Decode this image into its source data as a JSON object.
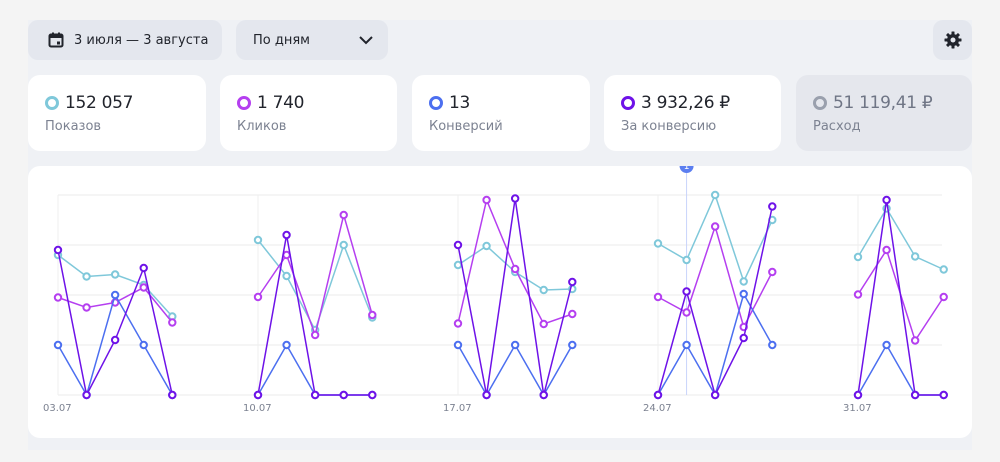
{
  "toolbar": {
    "date_range": "3 июля — 3 августа",
    "period": "По дням",
    "icons": {
      "calendar": "calendar-icon",
      "chevron": "chevron-down-icon",
      "settings": "gear-icon"
    }
  },
  "metrics": [
    {
      "value": "152 057",
      "label": "Показов",
      "color": "#7fc8da",
      "active": true
    },
    {
      "value": "1 740",
      "label": "Кликов",
      "color": "#b53ff0",
      "active": true
    },
    {
      "value": "13",
      "label": "Конверсий",
      "color": "#4c6ff0",
      "active": true
    },
    {
      "value": "3 932,26 ₽",
      "label": "За конверсию",
      "color": "#6e12e8",
      "active": true
    },
    {
      "value": "51 119,41 ₽",
      "label": "Расход",
      "color": "#9aa0ad",
      "active": false
    }
  ],
  "chart_data": {
    "type": "line",
    "x_ticks": [
      "03.07",
      "10.07",
      "17.07",
      "24.07",
      "31.07"
    ],
    "ylim": [
      0,
      4
    ],
    "grid": true,
    "marker": {
      "day_index": 22,
      "label": "1"
    },
    "weeks": [
      {
        "start_day": 0,
        "days": 5
      },
      {
        "start_day": 7,
        "days": 5
      },
      {
        "start_day": 14,
        "days": 5
      },
      {
        "start_day": 21,
        "days": 5
      },
      {
        "start_day": 28,
        "days": 4
      }
    ],
    "series": [
      {
        "name": "Показов",
        "color": "#7fc8da",
        "values": [
          [
            2.8,
            2.37,
            2.41,
            2.2,
            1.57
          ],
          [
            3.1,
            2.38,
            1.3,
            3.0,
            1.55
          ],
          [
            2.6,
            2.98,
            2.46,
            2.1,
            2.12
          ],
          [
            3.03,
            2.7,
            4.0,
            2.27,
            3.5
          ],
          [
            2.76,
            3.73,
            2.77,
            2.51
          ]
        ]
      },
      {
        "name": "Кликов",
        "color": "#b53ff0",
        "values": [
          [
            1.95,
            1.75,
            1.85,
            2.15,
            1.45
          ],
          [
            1.96,
            2.8,
            1.2,
            3.6,
            1.6
          ],
          [
            1.43,
            3.9,
            2.52,
            1.42,
            1.62
          ],
          [
            1.96,
            1.65,
            3.37,
            1.36,
            2.46
          ],
          [
            2.01,
            2.9,
            1.09,
            1.96
          ]
        ]
      },
      {
        "name": "Конверсий",
        "color": "#4c6ff0",
        "values": [
          [
            1.0,
            0,
            2.0,
            1.0,
            0
          ],
          [
            0,
            1.0,
            0,
            0,
            0
          ],
          [
            1.0,
            0,
            1.0,
            0,
            1.0
          ],
          [
            0,
            1.0,
            0,
            2.02,
            1.0
          ],
          [
            0,
            1.0,
            0,
            0
          ]
        ]
      },
      {
        "name": "За конверсию",
        "color": "#6e12e8",
        "values": [
          [
            2.9,
            0,
            1.1,
            2.54,
            0
          ],
          [
            0,
            3.2,
            0,
            0,
            0
          ],
          [
            3.0,
            0,
            3.93,
            0,
            2.26
          ],
          [
            0,
            2.07,
            0,
            1.14,
            3.77
          ],
          [
            0,
            3.9,
            0,
            0
          ]
        ]
      }
    ]
  }
}
